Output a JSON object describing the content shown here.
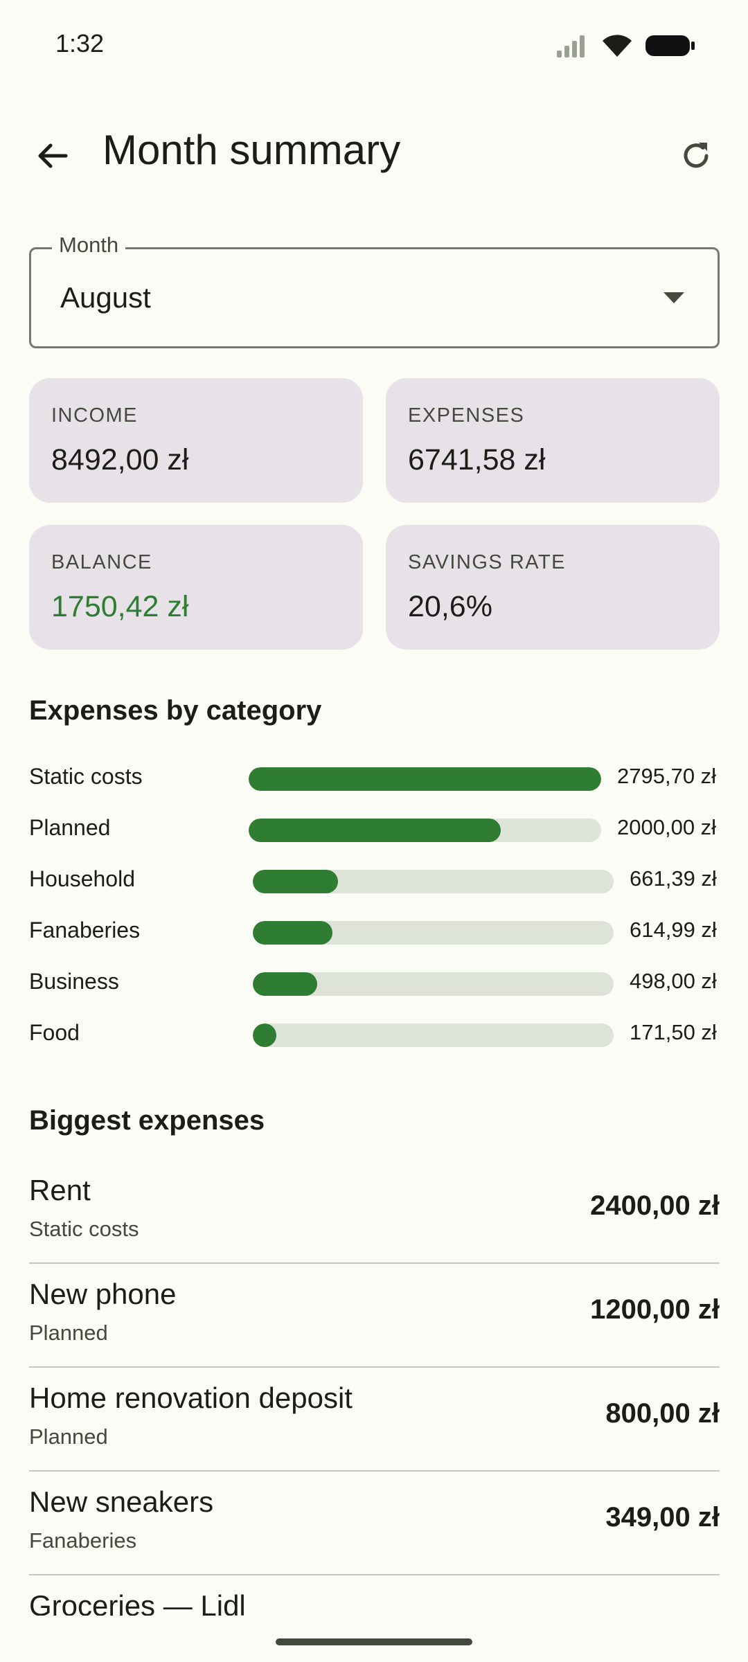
{
  "status": {
    "time": "1:32"
  },
  "appbar": {
    "title": "Month summary"
  },
  "month": {
    "label": "Month",
    "value": "August"
  },
  "cards": {
    "income": {
      "label": "INCOME",
      "value": "8492,00 zł"
    },
    "expenses": {
      "label": "EXPENSES",
      "value": "6741,58 zł"
    },
    "balance": {
      "label": "BALANCE",
      "value": "1750,42 zł"
    },
    "savings": {
      "label": "SAVINGS RATE",
      "value": "20,6%"
    }
  },
  "categories": {
    "title": "Expenses by category",
    "items": [
      {
        "name": "Static costs",
        "amount": "2795,70 zł",
        "fraction": 1.0
      },
      {
        "name": "Planned",
        "amount": "2000,00 zł",
        "fraction": 0.7154
      },
      {
        "name": "Household",
        "amount": "661,39 zł",
        "fraction": 0.2366
      },
      {
        "name": "Fanaberies",
        "amount": "614,99 zł",
        "fraction": 0.22
      },
      {
        "name": "Business",
        "amount": "498,00 zł",
        "fraction": 0.1781
      },
      {
        "name": "Food",
        "amount": "171,50 zł",
        "fraction": 0.0613
      }
    ]
  },
  "biggest": {
    "title": "Biggest expenses",
    "items": [
      {
        "name": "Rent",
        "category": "Static costs",
        "amount": "2400,00 zł"
      },
      {
        "name": "New phone",
        "category": "Planned",
        "amount": "1200,00 zł"
      },
      {
        "name": "Home renovation deposit",
        "category": "Planned",
        "amount": "800,00 zł"
      },
      {
        "name": "New sneakers",
        "category": "Fanaberies",
        "amount": "349,00 zł"
      },
      {
        "name": "Groceries — Lidl",
        "category": "",
        "amount": ""
      }
    ]
  },
  "colors": {
    "accent": "#2e7d32",
    "track": "#dee3d8",
    "card": "#e6e2e8",
    "background": "#fbfcf5"
  },
  "icons": {
    "back": "arrow-back-icon",
    "refresh": "refresh-icon",
    "dropdown": "arrow-drop-down-icon"
  }
}
